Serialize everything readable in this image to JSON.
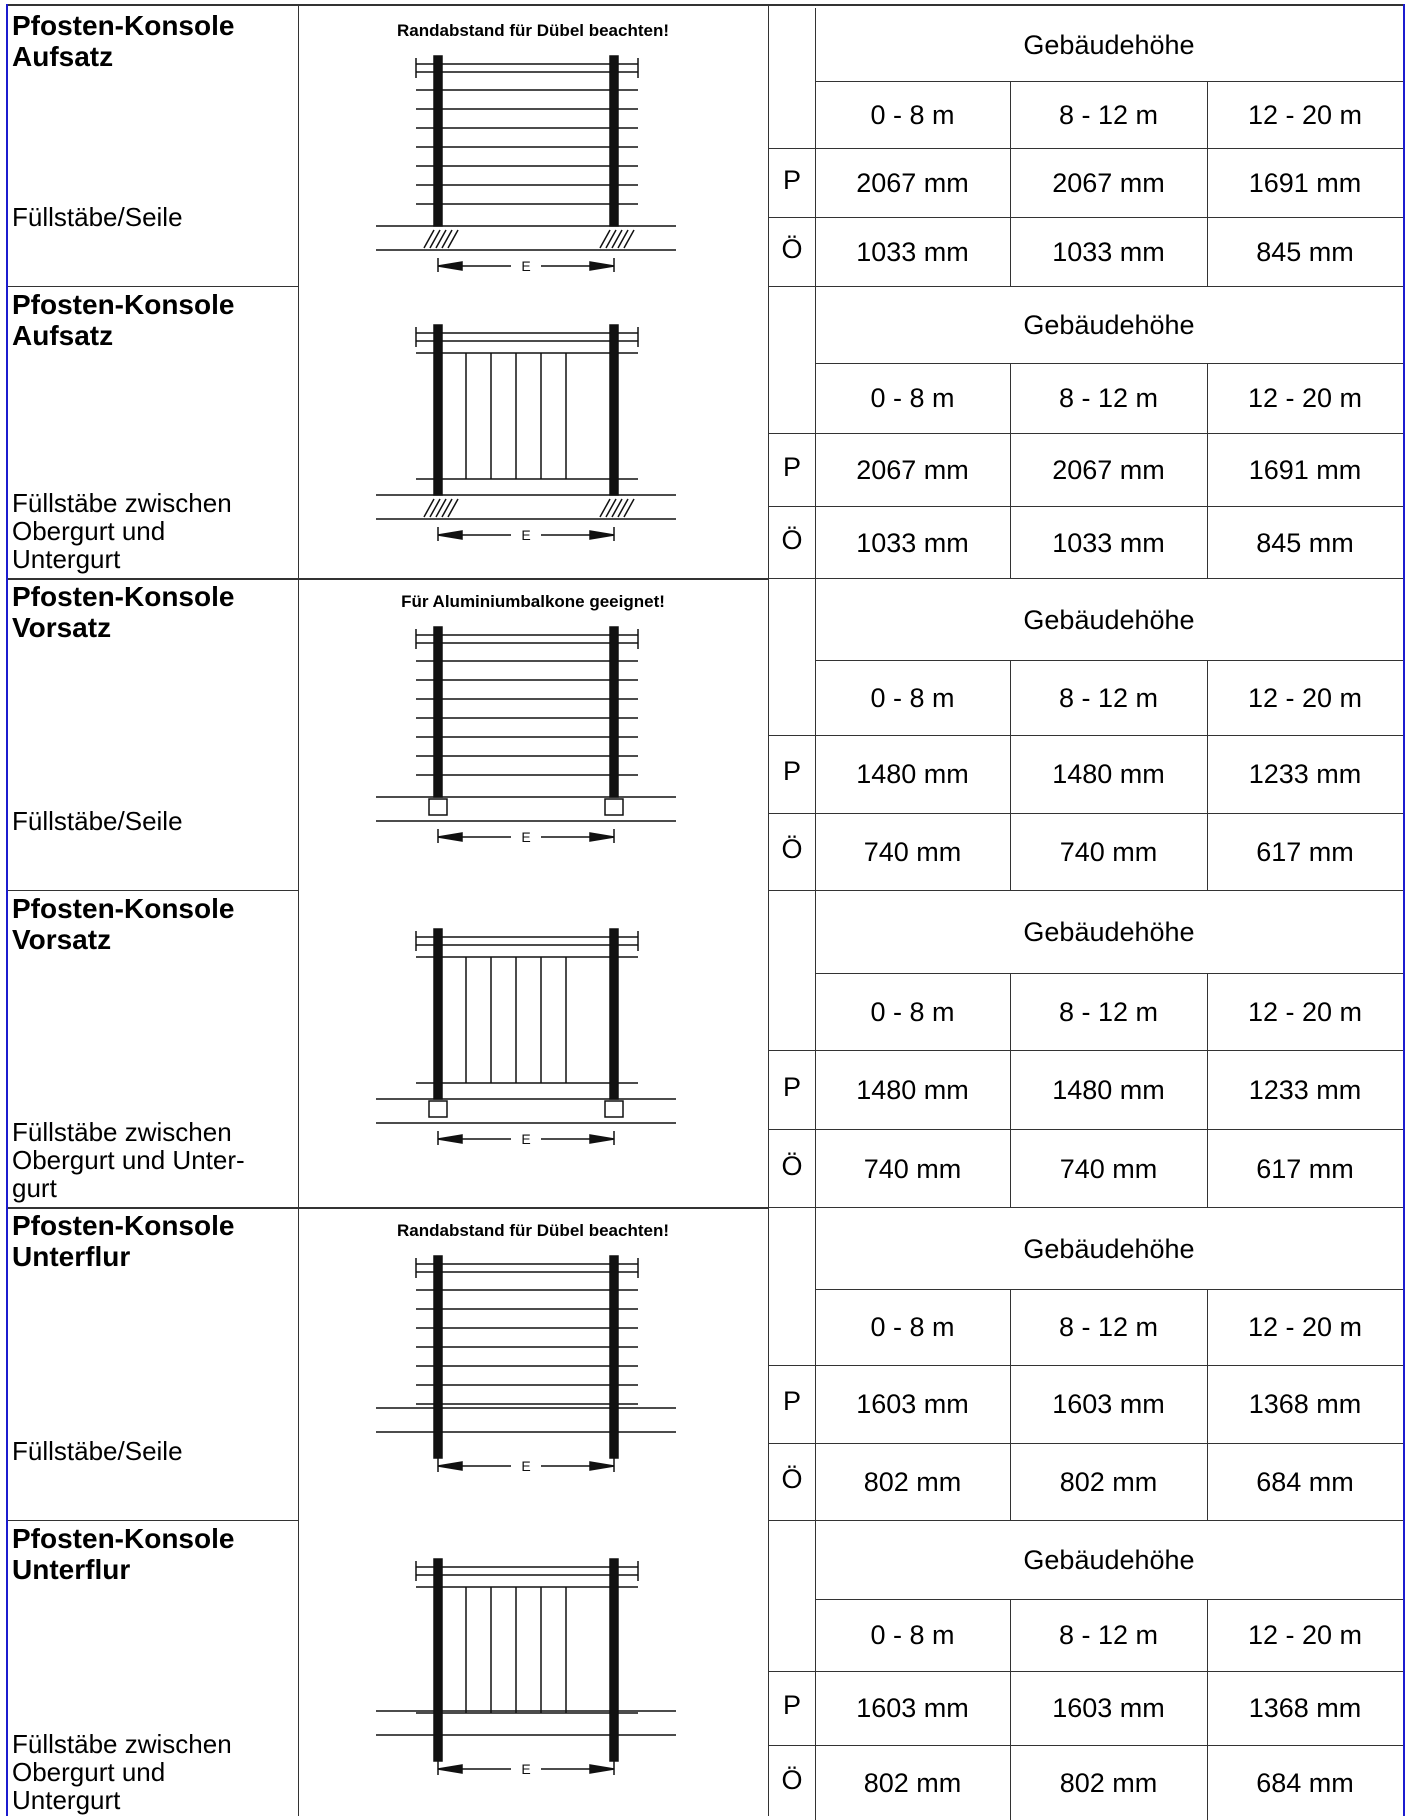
{
  "rows": [
    {
      "title": [
        "Pfosten-Konsole",
        "Aufsatz"
      ],
      "sub": [
        "Füllstäbe/Seile"
      ],
      "note": "Randabstand für Dübel beachten!",
      "fill": "seile",
      "mount": "aufsatz",
      "header": "Gebäudehöhe",
      "ranges": [
        "0 - 8 m",
        "8 - 12 m",
        "12 - 20 m"
      ],
      "p_label": "P",
      "p": [
        "2067 mm",
        "2067 mm",
        "1691 mm"
      ],
      "o_label": "Ö",
      "o": [
        "1033 mm",
        "1033 mm",
        "845 mm"
      ],
      "dim": "E"
    },
    {
      "title": [
        "Pfosten-Konsole",
        "Aufsatz"
      ],
      "sub": [
        "Füllstäbe zwischen",
        "Obergurt und",
        "Untergurt"
      ],
      "note": "",
      "fill": "staebe",
      "mount": "aufsatz",
      "header": "Gebäudehöhe",
      "ranges": [
        "0 - 8 m",
        "8 - 12 m",
        "12 - 20 m"
      ],
      "p_label": "P",
      "p": [
        "2067 mm",
        "2067 mm",
        "1691 mm"
      ],
      "o_label": "Ö",
      "o": [
        "1033 mm",
        "1033 mm",
        "845 mm"
      ],
      "dim": "E"
    },
    {
      "title": [
        "Pfosten-Konsole",
        "Vorsatz"
      ],
      "sub": [
        "Füllstäbe/Seile"
      ],
      "note": "Für Aluminiumbalkone geeignet!",
      "fill": "seile",
      "mount": "vorsatz",
      "header": "Gebäudehöhe",
      "ranges": [
        "0 - 8 m",
        "8 - 12 m",
        "12 - 20 m"
      ],
      "p_label": "P",
      "p": [
        "1480 mm",
        "1480 mm",
        "1233 mm"
      ],
      "o_label": "Ö",
      "o": [
        "740 mm",
        "740 mm",
        "617 mm"
      ],
      "dim": "E"
    },
    {
      "title": [
        "Pfosten-Konsole",
        "Vorsatz"
      ],
      "sub": [
        "Füllstäbe zwischen",
        "Obergurt und Unter-",
        "gurt"
      ],
      "note": "",
      "fill": "staebe",
      "mount": "vorsatz",
      "header": "Gebäudehöhe",
      "ranges": [
        "0 - 8 m",
        "8 - 12 m",
        "12 - 20 m"
      ],
      "p_label": "P",
      "p": [
        "1480 mm",
        "1480 mm",
        "1233 mm"
      ],
      "o_label": "Ö",
      "o": [
        "740 mm",
        "740 mm",
        "617 mm"
      ],
      "dim": "E"
    },
    {
      "title": [
        "Pfosten-Konsole",
        "Unterflur"
      ],
      "sub": [
        "Füllstäbe/Seile"
      ],
      "note": "Randabstand für Dübel beachten!",
      "fill": "seile",
      "mount": "unterflur",
      "header": "Gebäudehöhe",
      "ranges": [
        "0 - 8 m",
        "8 - 12 m",
        "12 - 20 m"
      ],
      "p_label": "P",
      "p": [
        "1603 mm",
        "1603 mm",
        "1368 mm"
      ],
      "o_label": "Ö",
      "o": [
        "802 mm",
        "802 mm",
        "684 mm"
      ],
      "dim": "E"
    },
    {
      "title": [
        "Pfosten-Konsole",
        "Unterflur"
      ],
      "sub": [
        "Füllstäbe zwischen",
        "Obergurt und",
        "Untergurt"
      ],
      "note": "",
      "fill": "staebe",
      "mount": "unterflur",
      "header": "Gebäudehöhe",
      "ranges": [
        "0 - 8 m",
        "8 - 12 m",
        "12 - 20 m"
      ],
      "p_label": "P",
      "p": [
        "1603 mm",
        "1603 mm",
        "1368 mm"
      ],
      "o_label": "Ö",
      "o": [
        "802 mm",
        "802 mm",
        "684 mm"
      ],
      "dim": "E"
    }
  ],
  "colors": {
    "border": "#1c1ccf",
    "grid": "#333333",
    "ink": "#000000"
  }
}
